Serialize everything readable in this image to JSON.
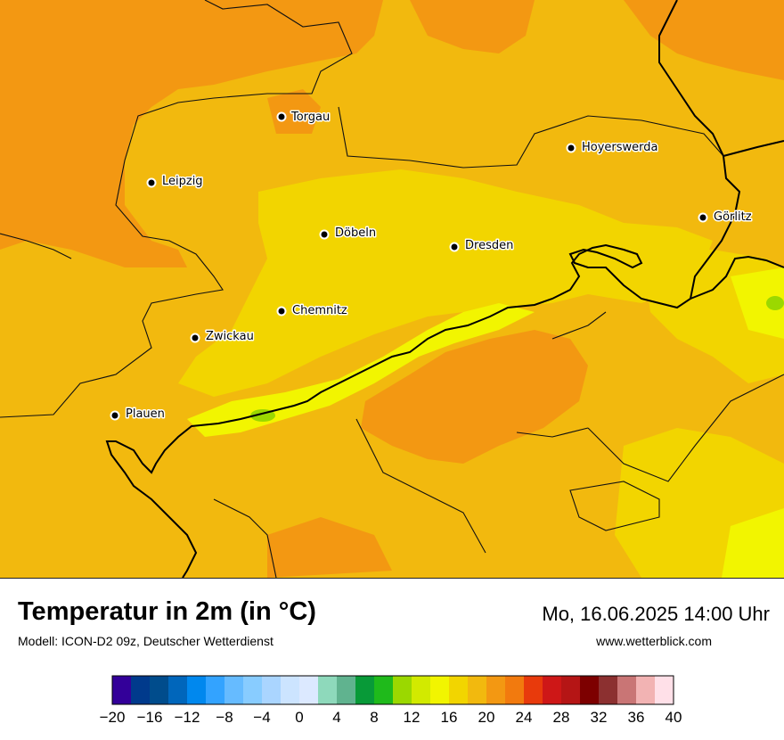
{
  "header": {
    "title": "Temperatur in 2m (in °C)",
    "model": "Modell: ICON-D2 09z, Deutscher Wetterdienst",
    "datetime": "Mo, 16.06.2025 14:00 Uhr",
    "website": "www.wetterblick.com"
  },
  "map": {
    "cities": [
      {
        "name": "Torgau"
      },
      {
        "name": "Hoyerswerda"
      },
      {
        "name": "Leipzig"
      },
      {
        "name": "Görlitz"
      },
      {
        "name": "Döbeln"
      },
      {
        "name": "Dresden"
      },
      {
        "name": "Chemnitz"
      },
      {
        "name": "Zwickau"
      },
      {
        "name": "Plauen"
      }
    ]
  },
  "legend": {
    "colors": [
      "#330099",
      "#003a8c",
      "#004c8c",
      "#0066bb",
      "#0088ee",
      "#33a3ff",
      "#66bbff",
      "#88ccff",
      "#aad5ff",
      "#cce4ff",
      "#dce9ff",
      "#8ed9bb",
      "#60b38f",
      "#089a38",
      "#1fba1b",
      "#9bd800",
      "#d2ea00",
      "#f2f500",
      "#f2d500",
      "#f2b90e",
      "#f39812",
      "#f27a0e",
      "#e83a0c",
      "#ce1717",
      "#b51515",
      "#7d0000",
      "#8c3030",
      "#c97575",
      "#f2b3b3",
      "#ffe0e8"
    ],
    "tick_labels": [
      "−20",
      "−16",
      "−12",
      "−8",
      "−4",
      "0",
      "4",
      "8",
      "12",
      "16",
      "20",
      "24",
      "28",
      "32",
      "36",
      "40"
    ]
  },
  "colors": {
    "cool_yellow": "#f2f500",
    "mid_yellow": "#f2d500",
    "warm_yellow": "#f2b90e",
    "orange": "#f39812",
    "green_spot": "#9bd800"
  }
}
